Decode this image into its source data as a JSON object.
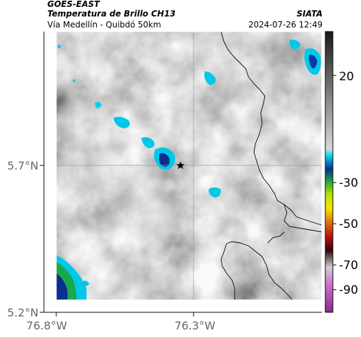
{
  "header": {
    "title": "GOES-EAST",
    "subtitle": "Temperatura de Brillo CH13",
    "organization": "SIATA",
    "location": "Vía Medellín - Quibdó 50km",
    "timestamp": "2024-07-26 12:49"
  },
  "axes": {
    "y_ticks": [
      "5.7°N",
      "5.2°N"
    ],
    "x_ticks": [
      "76.8°W",
      "76.3°W"
    ]
  },
  "colorbar": {
    "labels": [
      "20",
      "-30",
      "-50",
      "-70",
      "-90"
    ],
    "colors": {
      "warm": "#6f6f6f",
      "cold": "#0a2f8f",
      "cyan": "#00c8e8",
      "green": "#1aa84a",
      "yellow": "#f2e600",
      "red": "#d81a1a",
      "magenta": "#c040c0"
    }
  },
  "map": {
    "marker": "star-icon"
  }
}
